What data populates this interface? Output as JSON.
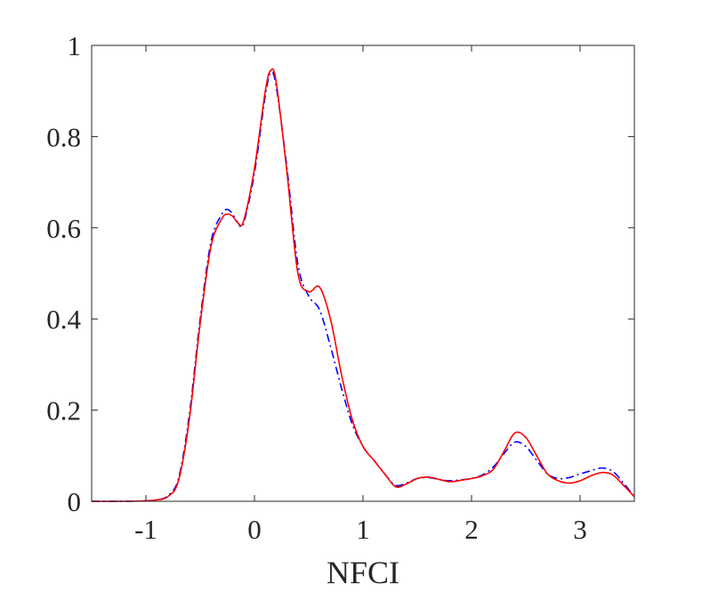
{
  "chart_data": {
    "type": "line",
    "title": "",
    "xlabel": "NFCI",
    "ylabel": "",
    "xlim": [
      -1.5,
      3.5
    ],
    "ylim": [
      0,
      1
    ],
    "xticks": [
      -1,
      0,
      1,
      2,
      3
    ],
    "xtick_labels": [
      "-1",
      "0",
      "1",
      "2",
      "3"
    ],
    "yticks": [
      0,
      0.2,
      0.4,
      0.6,
      0.8,
      1
    ],
    "ytick_labels": [
      "0",
      "0.2",
      "0.4",
      "0.6",
      "0.8",
      "1"
    ],
    "grid": false,
    "box": true,
    "series": [
      {
        "color": "#0000ff",
        "linestyle": "dash-dot",
        "x": [
          -1.5,
          -1.2,
          -1.0,
          -0.9,
          -0.8,
          -0.7,
          -0.6,
          -0.5,
          -0.4,
          -0.3,
          -0.25,
          -0.2,
          -0.15,
          -0.1,
          0.0,
          0.1,
          0.15,
          0.2,
          0.3,
          0.4,
          0.5,
          0.6,
          0.7,
          0.8,
          0.9,
          1.0,
          1.1,
          1.2,
          1.3,
          1.4,
          1.5,
          1.6,
          1.7,
          1.8,
          1.9,
          2.0,
          2.1,
          2.2,
          2.3,
          2.4,
          2.5,
          2.6,
          2.7,
          2.8,
          2.9,
          3.0,
          3.1,
          3.2,
          3.3,
          3.4,
          3.5
        ],
        "y": [
          0.0,
          0.0,
          0.001,
          0.003,
          0.012,
          0.05,
          0.19,
          0.4,
          0.57,
          0.63,
          0.64,
          0.63,
          0.61,
          0.61,
          0.72,
          0.89,
          0.94,
          0.91,
          0.73,
          0.52,
          0.45,
          0.42,
          0.34,
          0.25,
          0.17,
          0.12,
          0.09,
          0.06,
          0.035,
          0.04,
          0.05,
          0.052,
          0.048,
          0.045,
          0.047,
          0.05,
          0.058,
          0.075,
          0.105,
          0.13,
          0.12,
          0.09,
          0.06,
          0.05,
          0.052,
          0.06,
          0.067,
          0.073,
          0.066,
          0.04,
          0.01
        ]
      },
      {
        "color": "#ff0000",
        "linestyle": "solid",
        "x": [
          -1.5,
          -1.2,
          -1.0,
          -0.9,
          -0.8,
          -0.7,
          -0.6,
          -0.5,
          -0.4,
          -0.3,
          -0.25,
          -0.2,
          -0.15,
          -0.1,
          0.0,
          0.1,
          0.15,
          0.2,
          0.3,
          0.4,
          0.5,
          0.6,
          0.7,
          0.8,
          0.9,
          1.0,
          1.1,
          1.2,
          1.3,
          1.4,
          1.5,
          1.6,
          1.7,
          1.8,
          1.9,
          2.0,
          2.1,
          2.2,
          2.3,
          2.4,
          2.5,
          2.6,
          2.7,
          2.8,
          2.9,
          3.0,
          3.1,
          3.2,
          3.3,
          3.4,
          3.5
        ],
        "y": [
          0.0,
          0.0,
          0.001,
          0.003,
          0.01,
          0.045,
          0.18,
          0.39,
          0.56,
          0.62,
          0.63,
          0.625,
          0.61,
          0.615,
          0.73,
          0.9,
          0.945,
          0.92,
          0.72,
          0.5,
          0.46,
          0.47,
          0.4,
          0.28,
          0.18,
          0.12,
          0.09,
          0.06,
          0.032,
          0.038,
          0.05,
          0.053,
          0.048,
          0.043,
          0.046,
          0.05,
          0.056,
          0.07,
          0.11,
          0.15,
          0.14,
          0.1,
          0.06,
          0.045,
          0.04,
          0.045,
          0.056,
          0.063,
          0.058,
          0.035,
          0.01
        ]
      }
    ]
  }
}
